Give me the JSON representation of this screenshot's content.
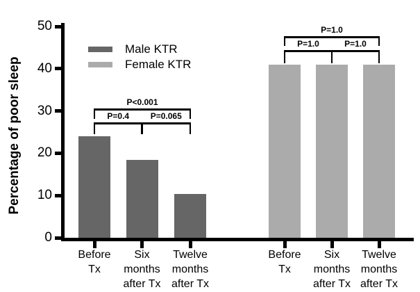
{
  "chart_data": {
    "type": "bar",
    "title": "",
    "ylabel": "Percentage of poor sleep",
    "xlabel": "",
    "ylim": [
      0,
      50
    ],
    "yticks": [
      0,
      10,
      20,
      30,
      40,
      50
    ],
    "grid": false,
    "legend_position": "top-left-inside",
    "background": "#ffffff",
    "axis_color": "#000000",
    "categories": [
      "Before Tx",
      "Six months after Tx",
      "Twelve months after Tx"
    ],
    "category_label_lines": [
      [
        "Before",
        "Tx"
      ],
      [
        "Six",
        "months",
        "after Tx"
      ],
      [
        "Twelve",
        "months",
        "after Tx"
      ]
    ],
    "series": [
      {
        "name": "Male KTR",
        "color": "#666666",
        "values": [
          24,
          18.5,
          10.3
        ],
        "comparisons": [
          {
            "from": 0,
            "to": 1,
            "label": "P=0.4",
            "level": 1
          },
          {
            "from": 1,
            "to": 2,
            "label": "P=0.065",
            "level": 1
          },
          {
            "from": 0,
            "to": 2,
            "label": "P<0.001",
            "level": 2
          }
        ]
      },
      {
        "name": "Female KTR",
        "color": "#ababab",
        "values": [
          41,
          41,
          41
        ],
        "comparisons": [
          {
            "from": 0,
            "to": 1,
            "label": "P=1.0",
            "level": 1
          },
          {
            "from": 1,
            "to": 2,
            "label": "P=1.0",
            "level": 1
          },
          {
            "from": 0,
            "to": 2,
            "label": "P=1.0",
            "level": 2
          }
        ]
      }
    ]
  }
}
